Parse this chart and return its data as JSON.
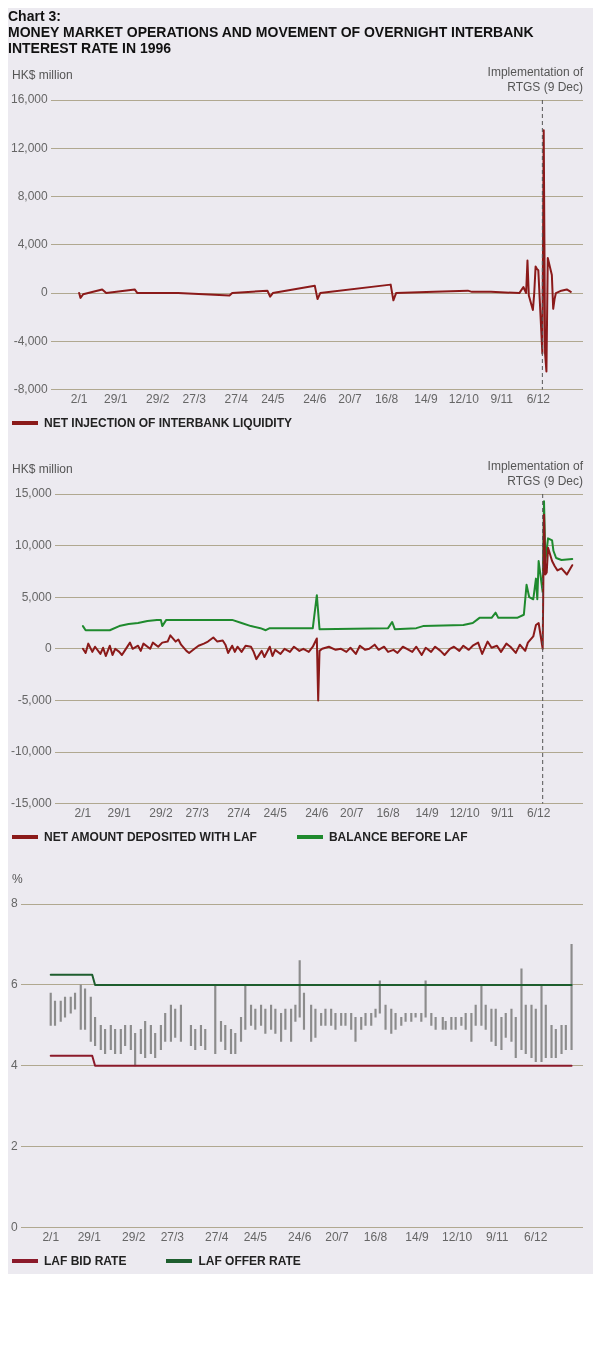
{
  "chart_data": [
    {
      "type": "line",
      "title": "Chart 3:",
      "subtitle": "MONEY MARKET OPERATIONS AND MOVEMENT OF OVERNIGHT INTERBANK INTEREST RATE IN 1996",
      "ylabel": "HK$ million",
      "x": [
        "1996-01-02",
        "1996-01-03",
        "1996-01-05",
        "1996-01-19",
        "1996-01-22",
        "1996-02-12",
        "1996-02-14",
        "1996-03-15",
        "1996-04-22",
        "1996-04-24",
        "1996-05-20",
        "1996-05-22",
        "1996-05-24",
        "1996-06-24",
        "1996-06-26",
        "1996-06-28",
        "1996-08-19",
        "1996-08-21",
        "1996-08-23",
        "1996-09-20",
        "1996-10-15",
        "1996-10-18",
        "1996-11-01",
        "1996-11-22",
        "1996-11-25",
        "1996-11-27",
        "1996-11-28",
        "1996-11-29",
        "1996-12-02",
        "1996-12-03",
        "1996-12-04",
        "1996-12-05",
        "1996-12-06",
        "1996-12-09",
        "1996-12-10",
        "1996-12-11",
        "1996-12-12",
        "1996-12-13",
        "1996-12-16",
        "1996-12-17",
        "1996-12-18",
        "1996-12-19",
        "1996-12-23",
        "1996-12-27",
        "1996-12-30"
      ],
      "series": [
        {
          "name": "NET INJECTION OF INTERBANK LIQUIDITY",
          "color": "#8b1a1a",
          "values": [
            0,
            -400,
            -100,
            300,
            0,
            300,
            0,
            0,
            -200,
            0,
            200,
            -300,
            0,
            600,
            -500,
            0,
            700,
            -600,
            0,
            100,
            200,
            100,
            100,
            0,
            500,
            0,
            2700,
            -200,
            -1400,
            0,
            2200,
            2000,
            1900,
            -5000,
            13500,
            -5000,
            -6500,
            2900,
            1500,
            -1300,
            -500,
            0,
            200,
            300,
            100
          ]
        }
      ],
      "xlim": [
        "1995-12-12",
        "1997-01-08"
      ],
      "xticks": [
        {
          "value": "1996-01-02",
          "label": "2/1"
        },
        {
          "value": "1996-01-29",
          "label": "29/1"
        },
        {
          "value": "1996-02-29",
          "label": "29/2"
        },
        {
          "value": "1996-03-27",
          "label": "27/3"
        },
        {
          "value": "1996-04-27",
          "label": "27/4"
        },
        {
          "value": "1996-05-24",
          "label": "24/5"
        },
        {
          "value": "1996-06-24",
          "label": "24/6"
        },
        {
          "value": "1996-07-20",
          "label": "20/7"
        },
        {
          "value": "1996-08-16",
          "label": "16/8"
        },
        {
          "value": "1996-09-14",
          "label": "14/9"
        },
        {
          "value": "1996-10-12",
          "label": "12/10"
        },
        {
          "value": "1996-11-09",
          "label": "9/11"
        },
        {
          "value": "1996-12-06",
          "label": "6/12"
        }
      ],
      "ylim": [
        -8000,
        16000
      ],
      "yticks": [
        {
          "value": -8000,
          "label": "-8,000"
        },
        {
          "value": -4000,
          "label": "-4,000"
        },
        0,
        {
          "value": 4000,
          "label": "4,000"
        },
        {
          "value": 8000,
          "label": "8,000"
        },
        {
          "value": 12000,
          "label": "12,000"
        },
        {
          "value": 16000,
          "label": "16,000"
        }
      ],
      "ref_lines": [
        {
          "axis": "x",
          "value": "1996-12-09",
          "label": "Implementation of RTGS (9 Dec)",
          "color": "#555555",
          "line_style": "dashed"
        }
      ],
      "grid": "y",
      "legend": "bottom"
    },
    {
      "type": "line",
      "ylabel": "HK$ million",
      "series": [
        {
          "name": "NET AMOUNT DEPOSITED WITH LAF",
          "color": "#8b1a1a",
          "x": [
            "1996-01-02",
            "1996-01-04",
            "1996-01-06",
            "1996-01-09",
            "1996-01-11",
            "1996-01-15",
            "1996-01-17",
            "1996-01-19",
            "1996-01-22",
            "1996-01-24",
            "1996-01-26",
            "1996-01-29",
            "1996-01-31",
            "1996-02-02",
            "1996-02-06",
            "1996-02-08",
            "1996-02-12",
            "1996-02-14",
            "1996-02-16",
            "1996-02-21",
            "1996-02-23",
            "1996-02-27",
            "1996-03-01",
            "1996-03-05",
            "1996-03-07",
            "1996-03-11",
            "1996-03-13",
            "1996-03-15",
            "1996-03-19",
            "1996-03-21",
            "1996-03-25",
            "1996-03-28",
            "1996-04-01",
            "1996-04-04",
            "1996-04-08",
            "1996-04-11",
            "1996-04-15",
            "1996-04-17",
            "1996-04-19",
            "1996-04-22",
            "1996-04-24",
            "1996-04-26",
            "1996-04-29",
            "1996-05-02",
            "1996-05-06",
            "1996-05-08",
            "1996-05-10",
            "1996-05-14",
            "1996-05-16",
            "1996-05-20",
            "1996-05-22",
            "1996-05-24",
            "1996-05-28",
            "1996-05-31",
            "1996-06-04",
            "1996-06-07",
            "1996-06-11",
            "1996-06-14",
            "1996-06-18",
            "1996-06-21",
            "1996-06-24",
            "1996-06-25",
            "1996-06-26",
            "1996-06-28",
            "1996-07-03",
            "1996-07-08",
            "1996-07-12",
            "1996-07-16",
            "1996-07-19",
            "1996-07-23",
            "1996-07-26",
            "1996-07-30",
            "1996-08-02",
            "1996-08-06",
            "1996-08-09",
            "1996-08-13",
            "1996-08-16",
            "1996-08-20",
            "1996-08-23",
            "1996-08-27",
            "1996-08-30",
            "1996-09-03",
            "1996-09-06",
            "1996-09-10",
            "1996-09-13",
            "1996-09-17",
            "1996-09-20",
            "1996-09-24",
            "1996-09-27",
            "1996-10-01",
            "1996-10-04",
            "1996-10-08",
            "1996-10-11",
            "1996-10-15",
            "1996-10-18",
            "1996-10-22",
            "1996-10-25",
            "1996-10-29",
            "1996-11-01",
            "1996-11-05",
            "1996-11-08",
            "1996-11-12",
            "1996-11-15",
            "1996-11-19",
            "1996-11-22",
            "1996-11-26",
            "1996-11-28",
            "1996-12-02",
            "1996-12-04",
            "1996-12-06",
            "1996-12-09",
            "1996-12-10",
            "1996-12-11",
            "1996-12-12",
            "1996-12-13",
            "1996-12-16",
            "1996-12-18",
            "1996-12-20",
            "1996-12-23",
            "1996-12-27",
            "1996-12-31"
          ],
          "values": [
            0,
            -400,
            500,
            -300,
            200,
            -500,
            100,
            -700,
            300,
            -600,
            0,
            -300,
            -600,
            -200,
            600,
            0,
            300,
            -200,
            500,
            0,
            600,
            200,
            600,
            700,
            1300,
            700,
            900,
            400,
            -200,
            -400,
            0,
            300,
            500,
            700,
            1100,
            700,
            800,
            400,
            -400,
            300,
            -300,
            200,
            -300,
            300,
            200,
            -300,
            -1000,
            -200,
            -800,
            200,
            -700,
            -100,
            -500,
            0,
            -300,
            200,
            -200,
            0,
            -300,
            200,
            1000,
            -5000,
            -200,
            0,
            200,
            -100,
            0,
            -300,
            100,
            -500,
            300,
            -100,
            0,
            400,
            -100,
            200,
            -300,
            -100,
            -400,
            200,
            0,
            -300,
            200,
            -600,
            100,
            -300,
            200,
            -200,
            -600,
            0,
            200,
            -200,
            300,
            -100,
            300,
            600,
            -500,
            700,
            100,
            300,
            -300,
            500,
            200,
            -400,
            400,
            -200,
            600,
            1200,
            2300,
            2500,
            0,
            13000,
            7200,
            7400,
            9800,
            8500,
            8000,
            7600,
            7800,
            7200,
            8100
          ]
        },
        {
          "name": "BALANCE BEFORE LAF",
          "color": "#1f8a2e",
          "x": [
            "1996-01-02",
            "1996-01-04",
            "1996-01-22",
            "1996-01-29",
            "1996-02-05",
            "1996-02-12",
            "1996-02-19",
            "1996-02-26",
            "1996-02-29",
            "1996-03-01",
            "1996-03-04",
            "1996-04-22",
            "1996-04-29",
            "1996-05-06",
            "1996-05-13",
            "1996-05-17",
            "1996-05-20",
            "1996-06-21",
            "1996-06-24",
            "1996-06-26",
            "1996-08-16",
            "1996-08-19",
            "1996-08-21",
            "1996-09-06",
            "1996-09-11",
            "1996-10-11",
            "1996-10-18",
            "1996-10-23",
            "1996-11-01",
            "1996-11-04",
            "1996-11-06",
            "1996-11-20",
            "1996-11-25",
            "1996-11-27",
            "1996-11-29",
            "1996-12-02",
            "1996-12-04",
            "1996-12-05",
            "1996-12-06",
            "1996-12-09",
            "1996-12-10",
            "1996-12-11",
            "1996-12-13",
            "1996-12-16",
            "1996-12-17",
            "1996-12-19",
            "1996-12-23",
            "1996-12-31"
          ],
          "values": [
            2200,
            1800,
            1800,
            2200,
            2400,
            2500,
            2700,
            2800,
            2800,
            2200,
            2800,
            2800,
            2500,
            2200,
            2000,
            1800,
            2000,
            2000,
            5200,
            1900,
            2000,
            2600,
            1900,
            2000,
            2200,
            2300,
            2500,
            3000,
            3000,
            3500,
            3000,
            3000,
            3300,
            6200,
            5000,
            4800,
            6800,
            4800,
            8500,
            5500,
            14300,
            8500,
            10700,
            10500,
            9500,
            8800,
            8600,
            8700
          ]
        }
      ],
      "xlim": [
        "1995-12-12",
        "1997-01-08"
      ],
      "xticks": [
        {
          "value": "1996-01-02",
          "label": "2/1"
        },
        {
          "value": "1996-01-29",
          "label": "29/1"
        },
        {
          "value": "1996-02-29",
          "label": "29/2"
        },
        {
          "value": "1996-03-27",
          "label": "27/3"
        },
        {
          "value": "1996-04-27",
          "label": "27/4"
        },
        {
          "value": "1996-05-24",
          "label": "24/5"
        },
        {
          "value": "1996-06-24",
          "label": "24/6"
        },
        {
          "value": "1996-07-20",
          "label": "20/7"
        },
        {
          "value": "1996-08-16",
          "label": "16/8"
        },
        {
          "value": "1996-09-14",
          "label": "14/9"
        },
        {
          "value": "1996-10-12",
          "label": "12/10"
        },
        {
          "value": "1996-11-09",
          "label": "9/11"
        },
        {
          "value": "1996-12-06",
          "label": "6/12"
        }
      ],
      "ylim": [
        -15000,
        15000
      ],
      "yticks": [
        {
          "value": -15000,
          "label": "-15,000"
        },
        {
          "value": -10000,
          "label": "-10,000"
        },
        {
          "value": -5000,
          "label": "-5,000"
        },
        0,
        {
          "value": 5000,
          "label": "5,000"
        },
        {
          "value": 10000,
          "label": "10,000"
        },
        {
          "value": 15000,
          "label": "15,000"
        }
      ],
      "ref_lines": [
        {
          "axis": "x",
          "value": "1996-12-09",
          "label": "Implementation of RTGS (9 Dec)",
          "color": "#555555",
          "line_style": "dashed"
        }
      ],
      "grid": "y",
      "legend": "bottom"
    },
    {
      "type": "line",
      "ylabel": "%",
      "series": [
        {
          "type": "bar",
          "color": "#8c8c8c",
          "x": [
            "1996-01-02",
            "1996-01-05",
            "1996-01-09",
            "1996-01-12",
            "1996-01-16",
            "1996-01-19",
            "1996-01-23",
            "1996-01-26",
            "1996-01-30",
            "1996-02-02",
            "1996-02-06",
            "1996-02-09",
            "1996-02-13",
            "1996-02-16",
            "1996-02-20",
            "1996-02-23",
            "1996-02-27",
            "1996-03-01",
            "1996-03-05",
            "1996-03-08",
            "1996-03-12",
            "1996-03-15",
            "1996-03-19",
            "1996-03-22",
            "1996-03-26",
            "1996-03-29",
            "1996-04-02",
            "1996-04-09",
            "1996-04-12",
            "1996-04-16",
            "1996-04-19",
            "1996-04-26",
            "1996-04-30",
            "1996-05-03",
            "1996-05-07",
            "1996-05-10",
            "1996-05-14",
            "1996-05-17",
            "1996-05-21",
            "1996-05-24",
            "1996-05-28",
            "1996-05-31",
            "1996-06-04",
            "1996-06-07",
            "1996-06-11",
            "1996-06-14",
            "1996-06-18",
            "1996-06-21",
            "1996-06-24",
            "1996-06-27",
            "1996-07-02",
            "1996-07-05",
            "1996-07-09",
            "1996-07-12",
            "1996-07-16",
            "1996-07-19",
            "1996-07-23",
            "1996-07-26",
            "1996-07-30",
            "1996-08-02",
            "1996-08-06",
            "1996-08-09",
            "1996-08-13",
            "1996-08-16",
            "1996-08-19",
            "1996-08-23",
            "1996-08-27",
            "1996-08-30",
            "1996-09-03",
            "1996-09-06",
            "1996-09-10",
            "1996-09-13",
            "1996-09-17",
            "1996-09-20",
            "1996-09-24",
            "1996-09-27",
            "1996-10-02",
            "1996-10-04",
            "1996-10-08",
            "1996-10-11",
            "1996-10-15",
            "1996-10-18",
            "1996-10-22",
            "1996-10-25",
            "1996-10-29",
            "1996-11-01",
            "1996-11-05",
            "1996-11-08",
            "1996-11-12",
            "1996-11-15",
            "1996-11-19",
            "1996-11-22",
            "1996-11-26",
            "1996-11-29",
            "1996-12-03",
            "1996-12-06",
            "1996-12-10",
            "1996-12-13",
            "1996-12-17",
            "1996-12-20",
            "1996-12-24",
            "1996-12-27",
            "1996-12-31"
          ],
          "base": [
            5.0,
            5.0,
            5.1,
            5.2,
            5.3,
            5.4,
            4.9,
            4.9,
            4.6,
            4.5,
            4.4,
            4.3,
            4.4,
            4.3,
            4.3,
            4.5,
            4.4,
            4.0,
            4.3,
            4.2,
            4.3,
            4.2,
            4.4,
            4.6,
            4.6,
            4.7,
            4.6,
            4.5,
            4.4,
            4.5,
            4.4,
            4.3,
            4.6,
            4.4,
            4.3,
            4.3,
            4.6,
            4.9,
            5.0,
            4.9,
            5.0,
            4.8,
            4.9,
            4.8,
            4.6,
            4.9,
            4.6,
            5.1,
            5.2,
            4.9,
            4.6,
            4.7,
            5.0,
            5.0,
            5.0,
            4.9,
            5.0,
            5.0,
            4.9,
            4.6,
            4.9,
            5.0,
            5.0,
            5.2,
            5.3,
            4.9,
            4.8,
            4.9,
            5.0,
            5.1,
            5.1,
            5.2,
            5.1,
            5.2,
            5.0,
            4.9,
            4.9,
            4.9,
            4.9,
            4.9,
            5.0,
            4.9,
            4.6,
            5.0,
            5.0,
            4.9,
            4.6,
            4.5,
            4.4,
            4.7,
            4.6,
            4.2,
            4.4,
            4.3,
            4.2,
            4.1,
            4.1,
            4.2,
            4.2,
            4.2,
            4.3,
            4.4,
            4.4
          ],
          "values": [
            0.8,
            0.6,
            0.5,
            0.5,
            0.4,
            0.4,
            1.1,
            1.0,
            1.1,
            0.7,
            0.6,
            0.6,
            0.6,
            0.6,
            0.6,
            0.5,
            0.6,
            0.8,
            0.6,
            0.9,
            0.7,
            0.6,
            0.6,
            0.7,
            0.9,
            0.7,
            0.9,
            0.5,
            0.5,
            0.5,
            0.5,
            1.7,
            0.5,
            0.6,
            0.6,
            0.5,
            0.6,
            1.1,
            0.5,
            0.5,
            0.5,
            0.6,
            0.6,
            0.6,
            0.7,
            0.5,
            0.8,
            0.4,
            1.4,
            0.9,
            0.9,
            0.7,
            0.3,
            0.4,
            0.4,
            0.4,
            0.3,
            0.3,
            0.4,
            0.6,
            0.3,
            0.3,
            0.3,
            0.2,
            0.8,
            0.6,
            0.6,
            0.4,
            0.2,
            0.2,
            0.2,
            0.1,
            0.2,
            0.9,
            0.3,
            0.3,
            0.3,
            0.2,
            0.3,
            0.3,
            0.2,
            0.4,
            0.7,
            0.5,
            1.0,
            0.6,
            0.8,
            0.9,
            0.8,
            0.6,
            0.8,
            1.0,
            2.0,
            1.2,
            1.3,
            1.3,
            1.9,
            1.3,
            0.8,
            0.7,
            0.7,
            0.6,
            2.6
          ]
        },
        {
          "name": "LAF BID RATE",
          "color": "#8b1a2a",
          "x": [
            "1996-01-02",
            "1996-01-31",
            "1996-02-02",
            "1996-12-31"
          ],
          "values": [
            4.25,
            4.25,
            4.0,
            4.0
          ]
        },
        {
          "name": "LAF OFFER RATE",
          "color": "#1e5e2e",
          "x": [
            "1996-01-02",
            "1996-01-31",
            "1996-02-02",
            "1996-12-31"
          ],
          "values": [
            6.25,
            6.25,
            6.0,
            6.0
          ]
        }
      ],
      "xlim": [
        "1995-12-12",
        "1997-01-08"
      ],
      "xticks": [
        {
          "value": "1996-01-02",
          "label": "2/1"
        },
        {
          "value": "1996-01-29",
          "label": "29/1"
        },
        {
          "value": "1996-02-29",
          "label": "29/2"
        },
        {
          "value": "1996-03-27",
          "label": "27/3"
        },
        {
          "value": "1996-04-27",
          "label": "27/4"
        },
        {
          "value": "1996-05-24",
          "label": "24/5"
        },
        {
          "value": "1996-06-24",
          "label": "24/6"
        },
        {
          "value": "1996-07-20",
          "label": "20/7"
        },
        {
          "value": "1996-08-16",
          "label": "16/8"
        },
        {
          "value": "1996-09-14",
          "label": "14/9"
        },
        {
          "value": "1996-10-12",
          "label": "12/10"
        },
        {
          "value": "1996-11-09",
          "label": "9/11"
        },
        {
          "value": "1996-12-06",
          "label": "6/12"
        }
      ],
      "ylim": [
        0,
        8
      ],
      "yticks": [
        0,
        2,
        4,
        6,
        8
      ],
      "grid": "y",
      "legend": "bottom"
    }
  ]
}
